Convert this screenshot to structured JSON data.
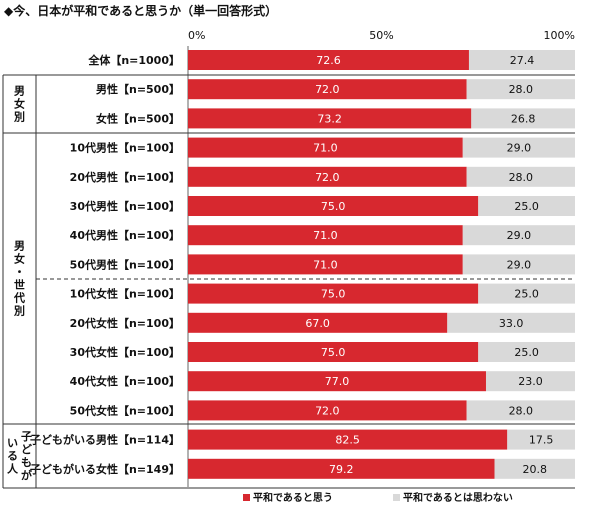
{
  "title": "◆今、日本が平和であると思うか（単一回答形式）",
  "chart_data": {
    "type": "bar",
    "orientation": "horizontal",
    "stacked": true,
    "xlim": [
      0,
      100
    ],
    "ticks": [
      "0%",
      "50%",
      "100%"
    ],
    "categories": [
      "全体【n=1000】",
      "男性【n=500】",
      "女性【n=500】",
      "10代男性【n=100】",
      "20代男性【n=100】",
      "30代男性【n=100】",
      "40代男性【n=100】",
      "50代男性【n=100】",
      "10代女性【n=100】",
      "20代女性【n=100】",
      "30代女性【n=100】",
      "40代女性【n=100】",
      "50代女性【n=100】",
      "子どもがいる男性【n=114】",
      "子どもがいる女性【n=149】"
    ],
    "series": [
      {
        "name": "平和であると思う",
        "color": "#d7282f",
        "values": [
          72.6,
          72.0,
          73.2,
          71.0,
          72.0,
          75.0,
          71.0,
          71.0,
          75.0,
          67.0,
          75.0,
          77.0,
          72.0,
          82.5,
          79.2
        ],
        "labels": [
          "72.6",
          "72.0",
          "73.2",
          "71.0",
          "72.0",
          "75.0",
          "71.0",
          "71.0",
          "75.0",
          "67.0",
          "75.0",
          "77.0",
          "72.0",
          "82.5",
          "79.2"
        ]
      },
      {
        "name": "平和であるとは思わない",
        "color": "#d9d9d9",
        "values": [
          27.4,
          28.0,
          26.8,
          29.0,
          28.0,
          25.0,
          29.0,
          29.0,
          25.0,
          33.0,
          25.0,
          23.0,
          28.0,
          17.5,
          20.8
        ],
        "labels": [
          "27.4",
          "28.0",
          "26.8",
          "29.0",
          "28.0",
          "25.0",
          "29.0",
          "29.0",
          "25.0",
          "33.0",
          "25.0",
          "23.0",
          "28.0",
          "17.5",
          "20.8"
        ]
      }
    ],
    "groups": [
      {
        "label": "男女別",
        "start": 1,
        "end": 2
      },
      {
        "label": "男女・世代別",
        "start": 3,
        "end": 12
      },
      {
        "label": "子どもがいる人",
        "start": 13,
        "end": 14
      }
    ],
    "legend_position": "bottom"
  }
}
